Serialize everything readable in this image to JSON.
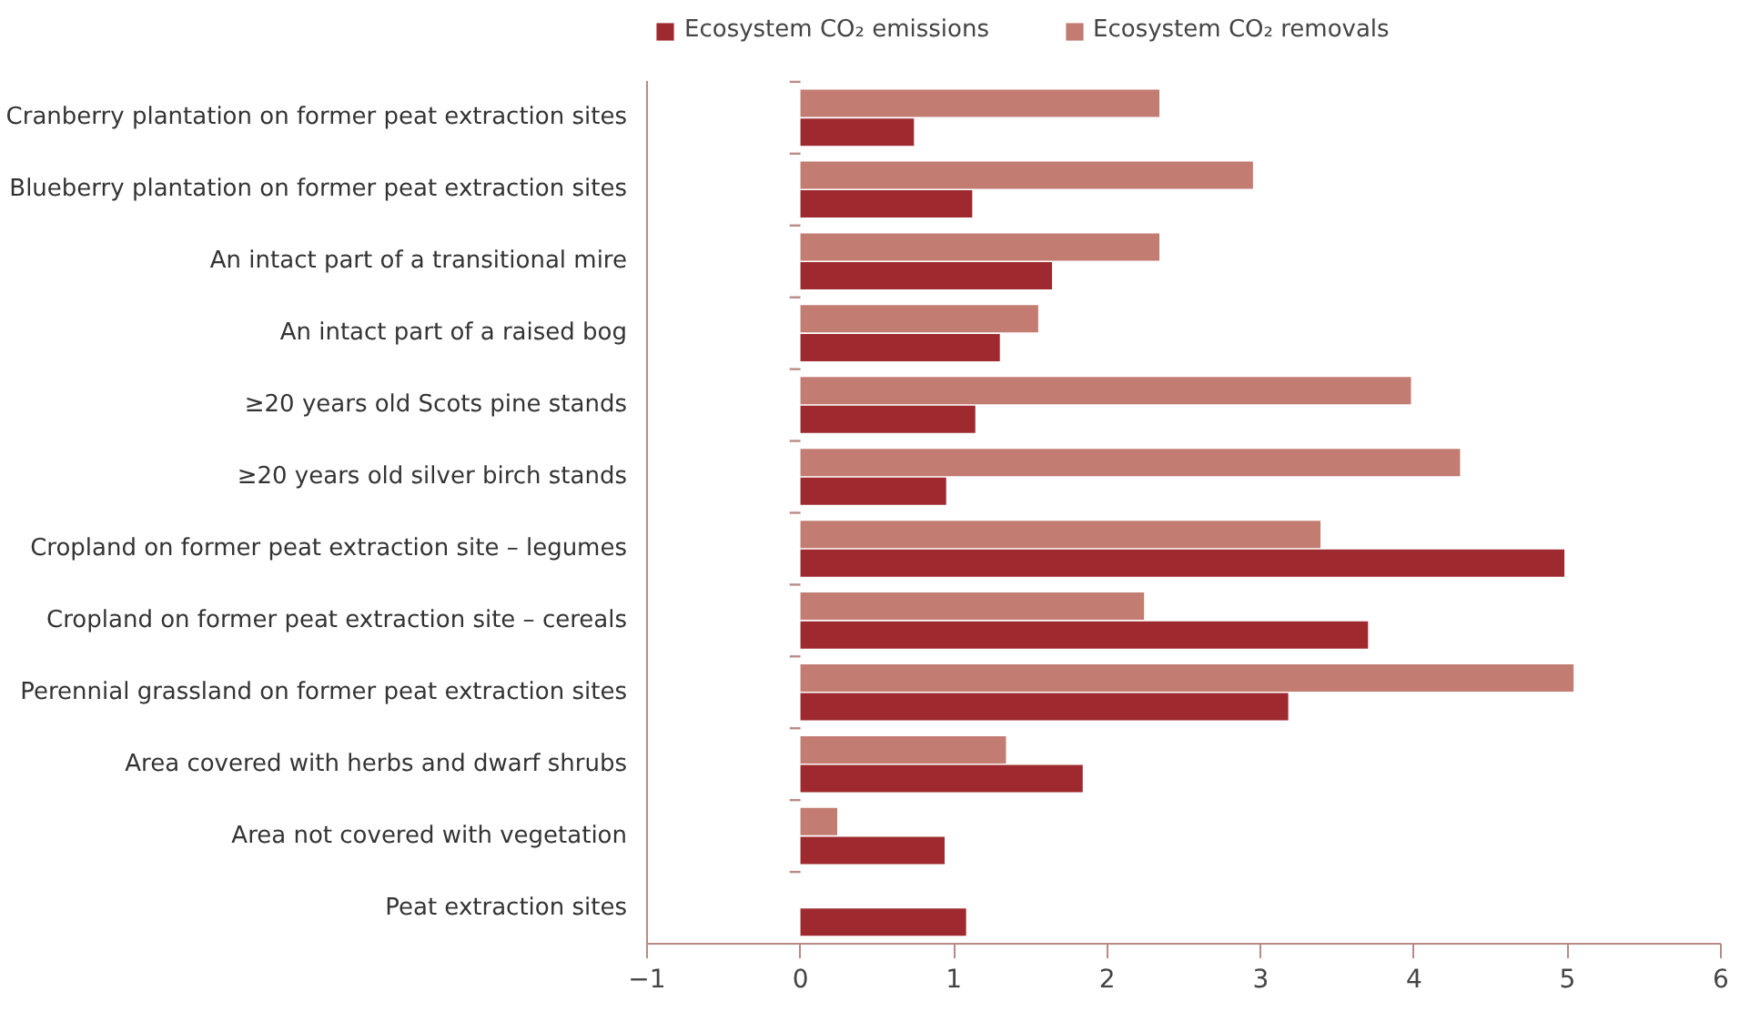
{
  "chart_data": {
    "type": "bar",
    "orientation": "horizontal",
    "categories": [
      "Cranberry plantation on former peat extraction sites",
      "Blueberry plantation on former peat extraction sites",
      "An intact part of a transitional mire",
      "An intact part of a raised bog",
      "≥20 years old Scots pine stands",
      "≥20 years old silver birch stands",
      "Cropland on former peat extraction site – legumes",
      "Cropland on former peat extraction site – cereals",
      "Perennial grassland on former peat extraction sites",
      "Area covered with herbs and dwarf shrubs",
      "Area not covered with vegetation",
      "Peat extraction sites"
    ],
    "series": [
      {
        "name": "Ecosystem CO₂ removals",
        "color": "#c27c72",
        "values": [
          2.34,
          2.95,
          2.34,
          1.55,
          3.98,
          4.3,
          3.39,
          2.24,
          5.04,
          1.34,
          0.24,
          null
        ]
      },
      {
        "name": "Ecosystem CO₂ emissions",
        "color": "#9e2a2f",
        "values": [
          0.74,
          1.12,
          1.64,
          1.3,
          1.14,
          0.95,
          4.98,
          3.7,
          3.18,
          1.84,
          0.94,
          1.08
        ]
      }
    ],
    "xlim": [
      -1,
      6
    ],
    "xticks": [
      -1,
      0,
      1,
      2,
      3,
      4,
      5,
      6
    ],
    "grid": false,
    "legend": "top left"
  }
}
